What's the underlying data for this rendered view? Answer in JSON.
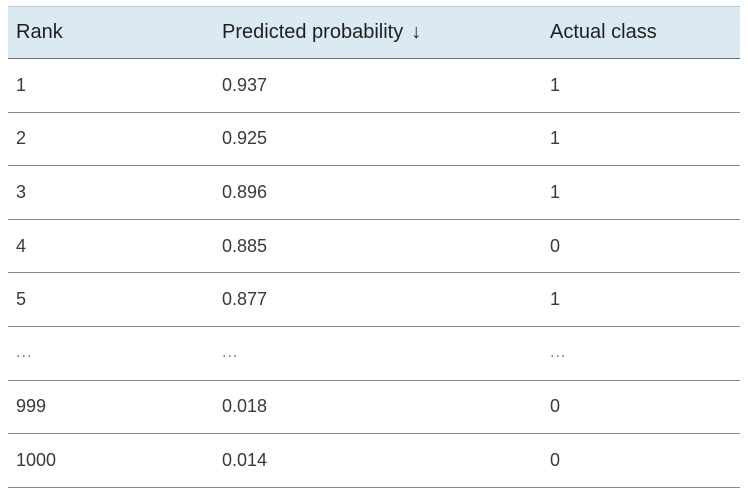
{
  "table": {
    "headers": {
      "rank": "Rank",
      "predicted_probability": "Predicted probability",
      "sort_arrow": "↓",
      "actual_class": "Actual class"
    },
    "rows": [
      {
        "rank": "1",
        "probability": "0.937",
        "actual": "1"
      },
      {
        "rank": "2",
        "probability": "0.925",
        "actual": "1"
      },
      {
        "rank": "3",
        "probability": "0.896",
        "actual": "1"
      },
      {
        "rank": "4",
        "probability": "0.885",
        "actual": "0"
      },
      {
        "rank": "5",
        "probability": "0.877",
        "actual": "1"
      },
      {
        "rank": "...",
        "probability": "...",
        "actual": "..."
      },
      {
        "rank": "999",
        "probability": "0.018",
        "actual": "0"
      },
      {
        "rank": "1000",
        "probability": "0.014",
        "actual": "0"
      }
    ]
  }
}
